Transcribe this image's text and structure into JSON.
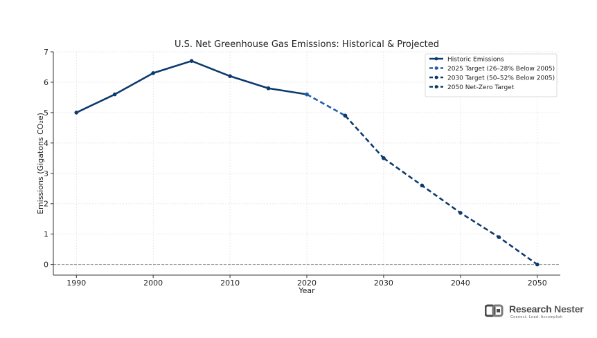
{
  "chart_data": {
    "type": "line",
    "title": "U.S. Net Greenhouse Gas Emissions: Historical & Projected",
    "xlabel": "Year",
    "ylabel": "Emissions (Gigatons CO₂e)",
    "xlim": [
      1987,
      2053
    ],
    "ylim": [
      -0.35,
      7
    ],
    "xticks": [
      1990,
      2000,
      2010,
      2020,
      2030,
      2040,
      2050
    ],
    "yticks": [
      0,
      1,
      2,
      3,
      4,
      5,
      6,
      7
    ],
    "grid": true,
    "zero_line": true,
    "legend_position": "top-right",
    "series": [
      {
        "name": "Historic Emissions",
        "style": "solid",
        "color": "#0d3a6e",
        "x": [
          1990,
          1995,
          2000,
          2005,
          2010,
          2015,
          2020
        ],
        "y": [
          5.0,
          5.6,
          6.3,
          6.7,
          6.2,
          5.8,
          5.6
        ]
      },
      {
        "name": "2025 Target (26–28% Below 2005)",
        "style": "dashed",
        "color": "#1f5fb0",
        "x": [
          2020,
          2025
        ],
        "y": [
          5.6,
          4.9
        ]
      },
      {
        "name": "2030 Target (50–52% Below 2005)",
        "style": "dashed",
        "color": "#0d3a6e",
        "x": [
          2025,
          2030
        ],
        "y": [
          4.9,
          3.5
        ]
      },
      {
        "name": "2050 Net-Zero Target",
        "style": "dashed",
        "color": "#0d3a6e",
        "x": [
          2030,
          2035,
          2040,
          2045,
          2050
        ],
        "y": [
          3.5,
          2.6,
          1.7,
          0.9,
          0.0
        ]
      }
    ]
  },
  "brand": {
    "name_part1": "Research",
    "name_part2": "Nester",
    "tagline": "Connect. Lead. Accomplish"
  }
}
